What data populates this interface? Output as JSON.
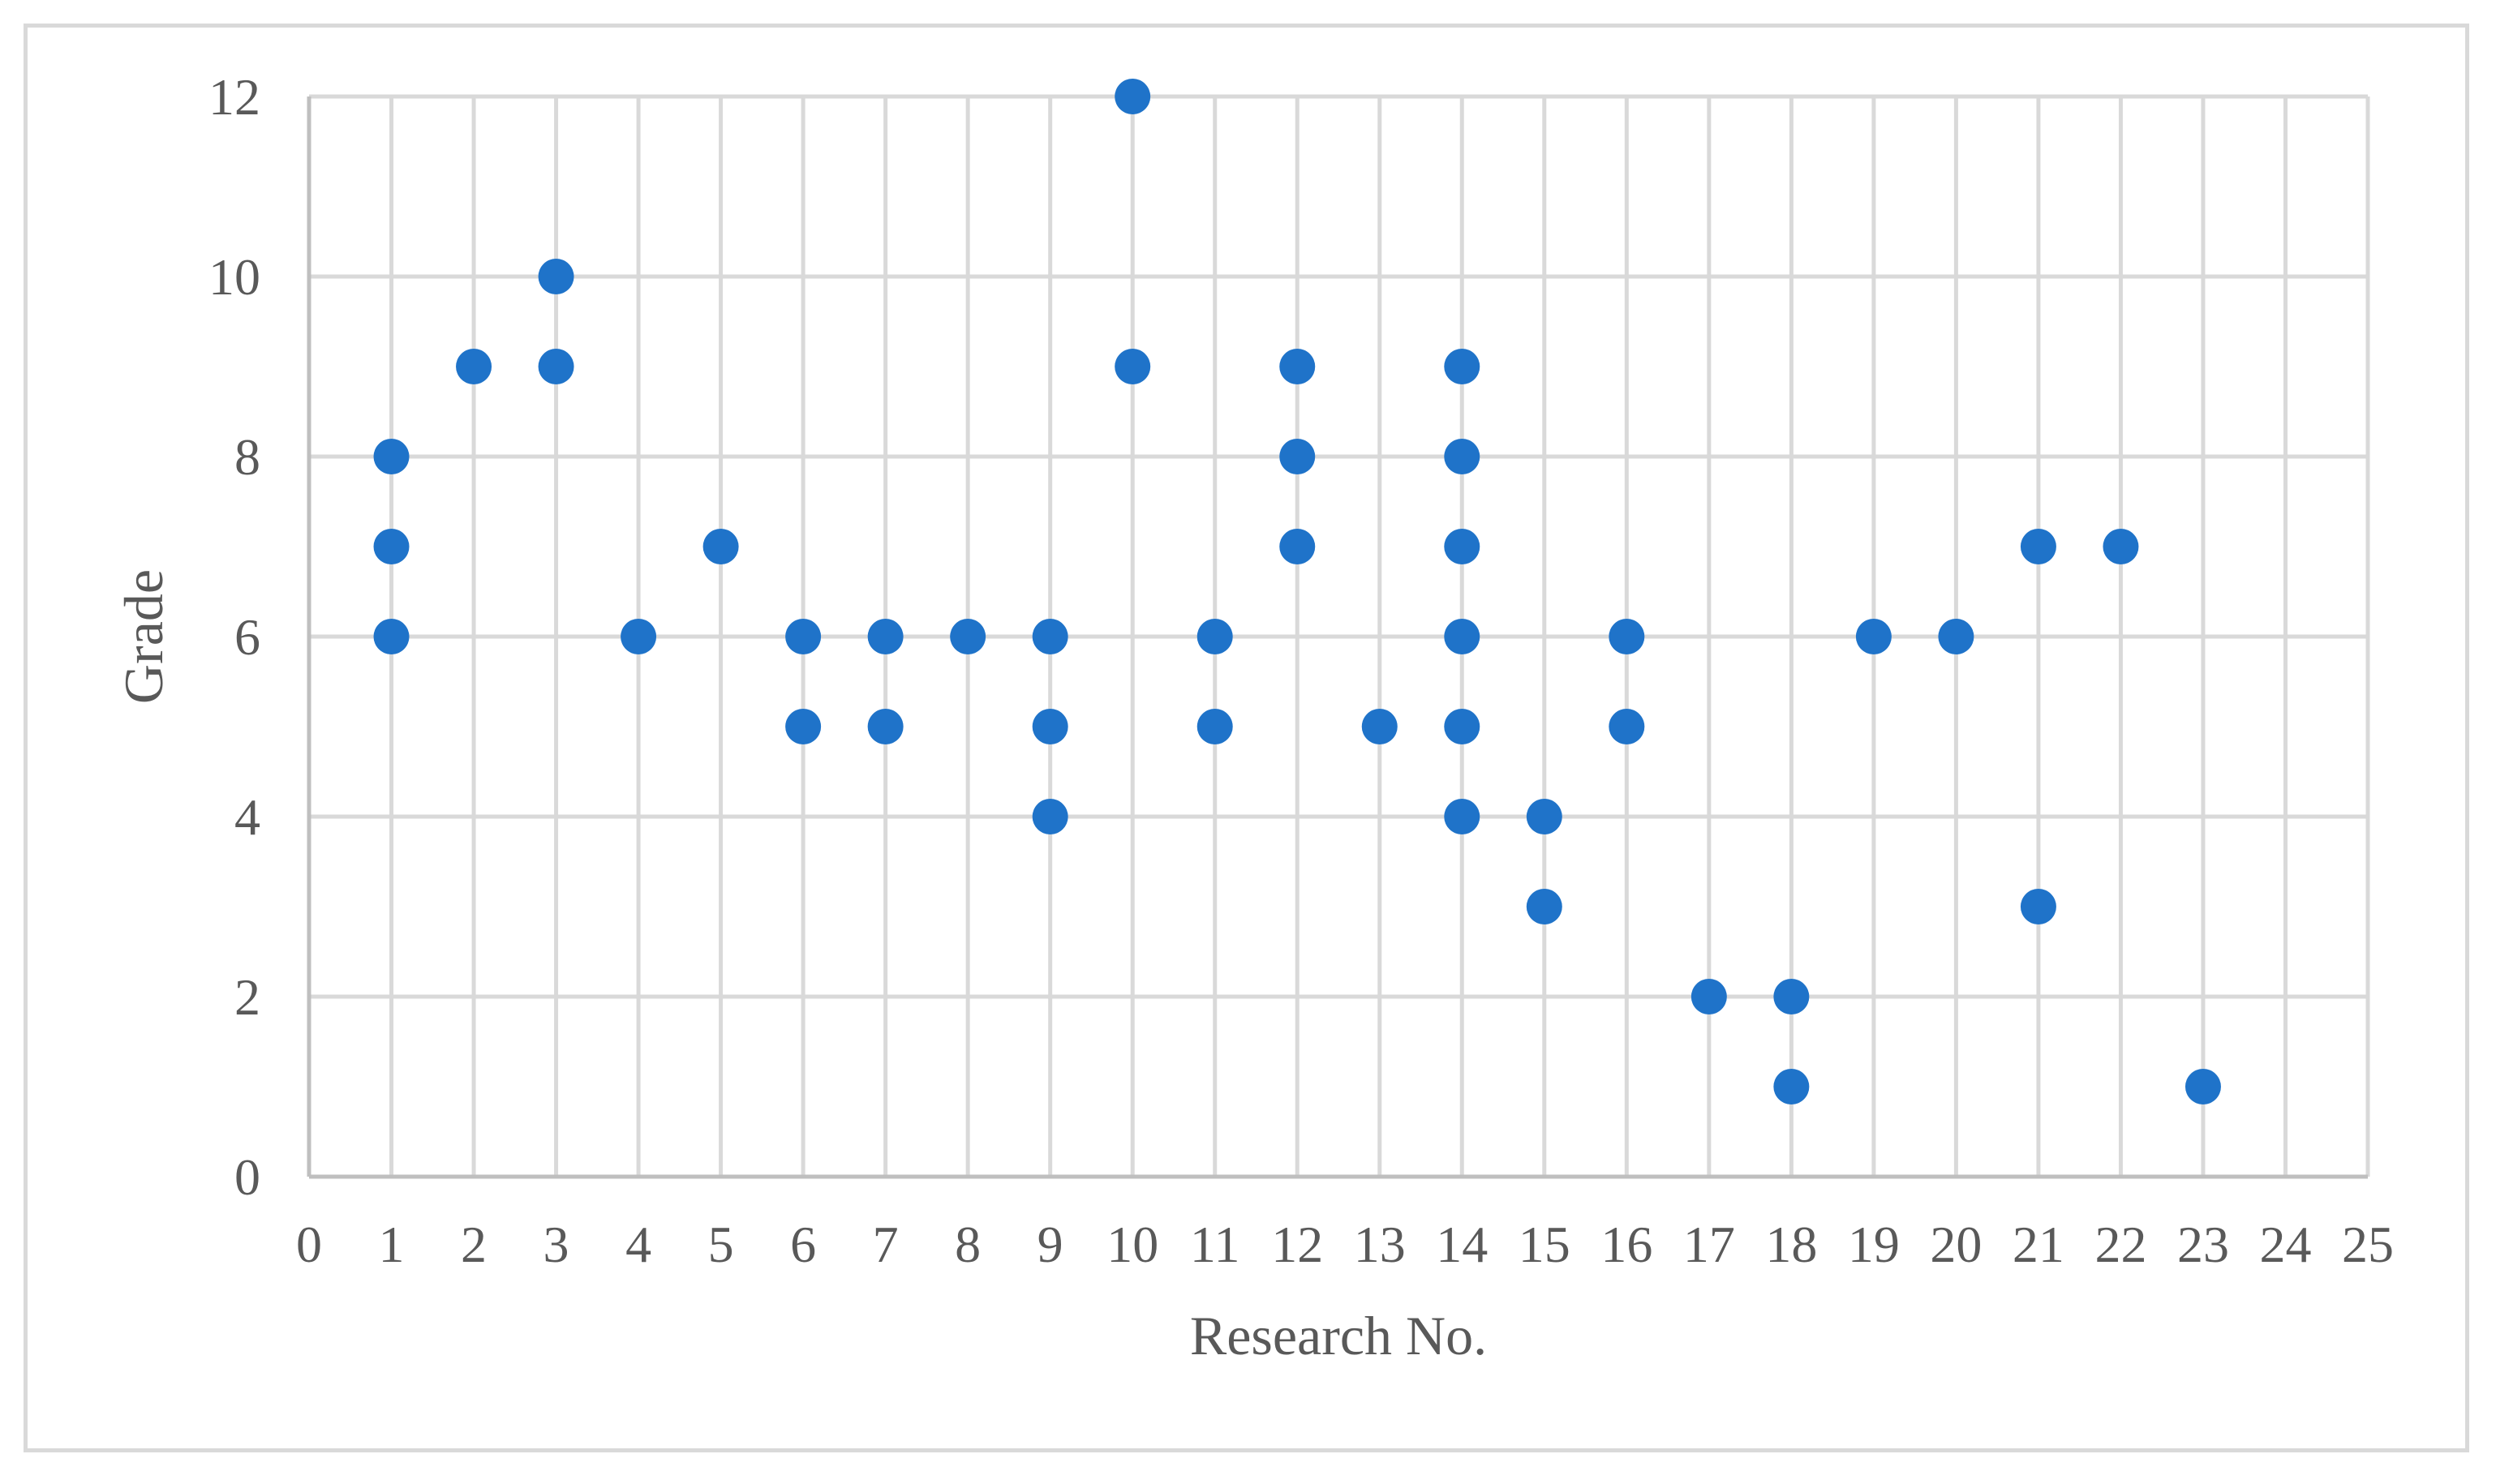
{
  "chart_data": {
    "type": "scatter",
    "title": "",
    "xlabel": "Research No.",
    "ylabel": "Grade",
    "xlim": [
      0,
      25
    ],
    "ylim": [
      0,
      12
    ],
    "xticks": [
      0,
      1,
      2,
      3,
      4,
      5,
      6,
      7,
      8,
      9,
      10,
      11,
      12,
      13,
      14,
      15,
      16,
      17,
      18,
      19,
      20,
      21,
      22,
      23,
      24,
      25
    ],
    "yticks": [
      0,
      2,
      4,
      6,
      8,
      10,
      12
    ],
    "grid": true,
    "legend": "none",
    "marker_color": "#1F73C9",
    "series": [
      {
        "points": [
          [
            1,
            8
          ],
          [
            1,
            7
          ],
          [
            1,
            6
          ],
          [
            2,
            9
          ],
          [
            3,
            10
          ],
          [
            3,
            9
          ],
          [
            4,
            6
          ],
          [
            5,
            7
          ],
          [
            6,
            6
          ],
          [
            6,
            5
          ],
          [
            7,
            6
          ],
          [
            7,
            5
          ],
          [
            8,
            6
          ],
          [
            9,
            6
          ],
          [
            9,
            5
          ],
          [
            9,
            4
          ],
          [
            10,
            12
          ],
          [
            10,
            9
          ],
          [
            11,
            6
          ],
          [
            11,
            5
          ],
          [
            12,
            9
          ],
          [
            12,
            8
          ],
          [
            12,
            7
          ],
          [
            13,
            5
          ],
          [
            14,
            9
          ],
          [
            14,
            8
          ],
          [
            14,
            7
          ],
          [
            14,
            6
          ],
          [
            14,
            5
          ],
          [
            14,
            4
          ],
          [
            15,
            4
          ],
          [
            15,
            3
          ],
          [
            16,
            6
          ],
          [
            16,
            5
          ],
          [
            17,
            2
          ],
          [
            18,
            2
          ],
          [
            18,
            1
          ],
          [
            19,
            6
          ],
          [
            20,
            6
          ],
          [
            21,
            7
          ],
          [
            21,
            3
          ],
          [
            22,
            7
          ],
          [
            23,
            1
          ]
        ]
      }
    ]
  }
}
